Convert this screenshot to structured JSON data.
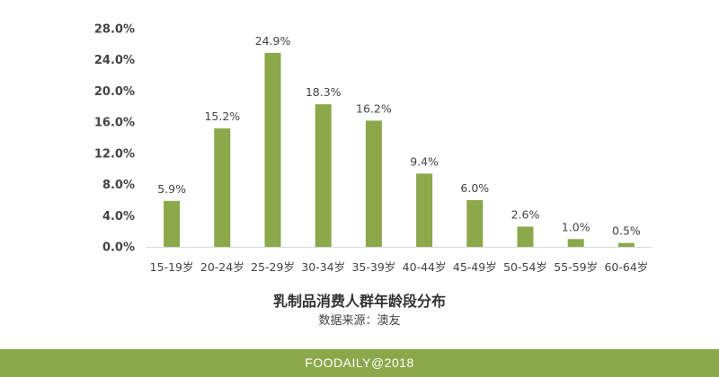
{
  "chart_data": {
    "type": "bar",
    "title": "乳制品消费人群年龄段分布",
    "source": "数据来源：澳友",
    "categories": [
      "15-19岁",
      "20-24岁",
      "25-29岁",
      "30-34岁",
      "35-39岁",
      "40-44岁",
      "45-49岁",
      "50-54岁",
      "55-59岁",
      "60-64岁"
    ],
    "values": [
      5.9,
      15.2,
      24.9,
      18.3,
      16.2,
      9.4,
      6.0,
      2.6,
      1.0,
      0.5
    ],
    "data_labels": [
      "5.9%",
      "15.2%",
      "24.9%",
      "18.3%",
      "16.2%",
      "9.4%",
      "6.0%",
      "2.6%",
      "1.0%",
      "0.5%"
    ],
    "yticks": [
      0,
      4,
      8,
      12,
      16,
      20,
      24,
      28
    ],
    "ytick_labels": [
      "0.0%",
      "4.0%",
      "8.0%",
      "12.0%",
      "16.0%",
      "20.0%",
      "24.0%",
      "28.0%"
    ],
    "ylim": [
      0,
      28
    ],
    "xlabel": "",
    "ylabel": "",
    "grid": false,
    "bar_color": "#8ba84a"
  },
  "footer": {
    "text": "FOODAILY@2018",
    "color": "#8ba84a"
  }
}
